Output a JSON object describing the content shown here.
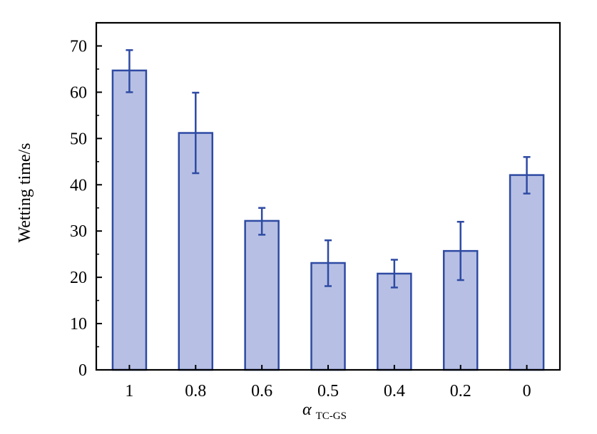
{
  "chart_data": {
    "type": "bar",
    "categories": [
      "1",
      "0.8",
      "0.6",
      "0.5",
      "0.4",
      "0.2",
      "0"
    ],
    "values": [
      64.7,
      51.2,
      32.2,
      23.1,
      20.8,
      25.7,
      42.1
    ],
    "error_upper": [
      69.1,
      59.9,
      35.0,
      28.0,
      23.8,
      32.0,
      46.0
    ],
    "error_lower": [
      60.0,
      42.5,
      29.2,
      18.1,
      17.8,
      19.4,
      38.1
    ],
    "ylabel": "Wetting time/s",
    "xlabel_main": "α",
    "xlabel_sub": "TC-GS",
    "ylim": [
      0,
      75
    ],
    "yticks": [
      0,
      10,
      20,
      30,
      40,
      50,
      60,
      70
    ],
    "grid": false,
    "colors": {
      "bar_fill": "#b7c0e4",
      "bar_stroke": "#2e4aa3",
      "axis": "#000000"
    }
  }
}
